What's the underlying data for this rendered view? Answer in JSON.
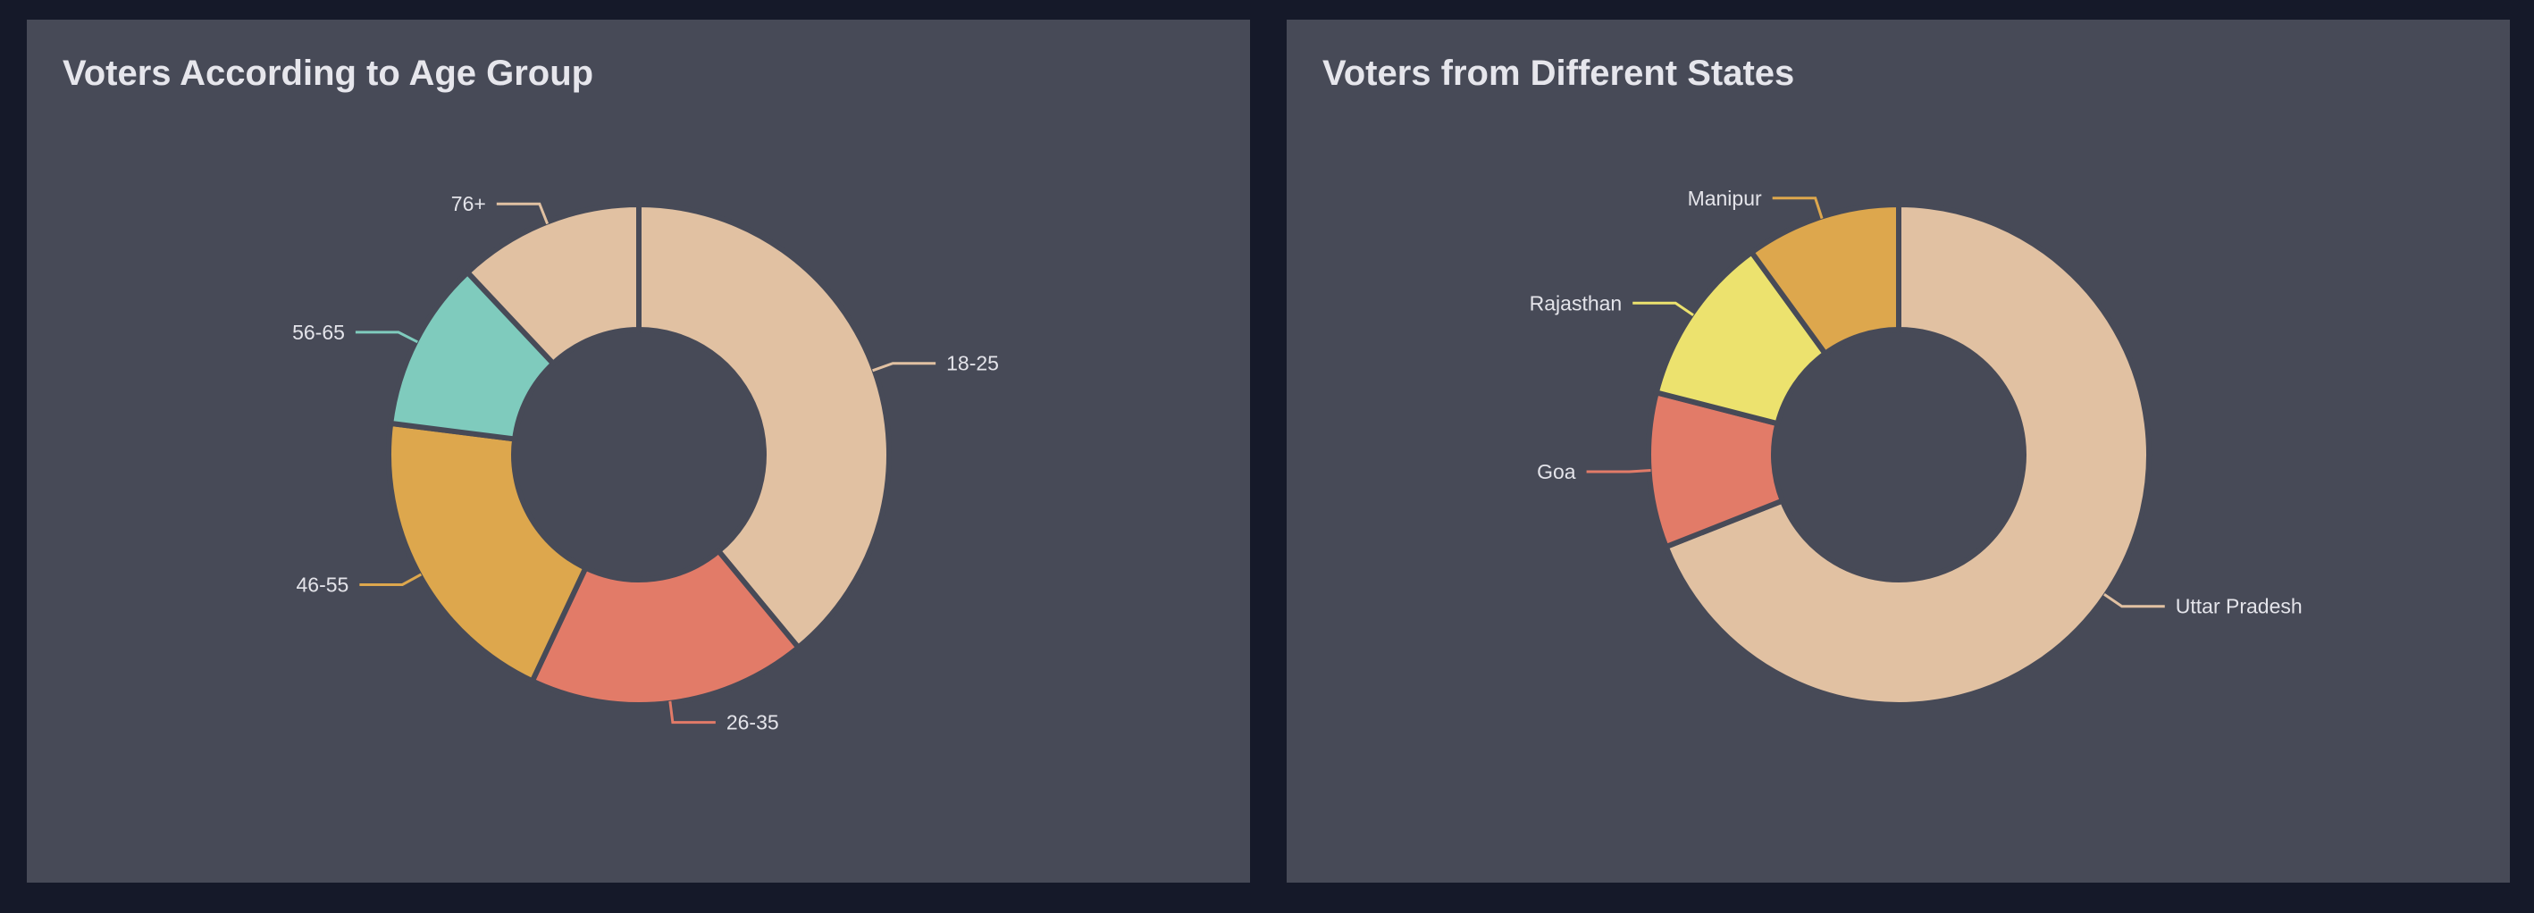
{
  "chart_data": [
    {
      "type": "pie",
      "title": "Voters According to Age Group",
      "categories": [
        "18-25",
        "26-35",
        "46-55",
        "56-65",
        "76+"
      ],
      "values": [
        39,
        18,
        20,
        11,
        12
      ],
      "colors": [
        "#e1c1a2",
        "#e27b68",
        "#dda74d",
        "#7fcbbd",
        "#e1c1a2"
      ],
      "inner_radius_ratio": 0.5,
      "legend": "none",
      "labels": "outside with leader lines"
    },
    {
      "type": "pie",
      "title": "Voters from Different States",
      "categories": [
        "Uttar Pradesh",
        "Goa",
        "Rajasthan",
        "Manipur"
      ],
      "values": [
        69,
        10,
        11,
        10
      ],
      "colors": [
        "#e1c1a2",
        "#e27b68",
        "#ece26e",
        "#dda74d"
      ],
      "inner_radius_ratio": 0.5,
      "legend": "none",
      "labels": "outside with leader lines"
    }
  ]
}
